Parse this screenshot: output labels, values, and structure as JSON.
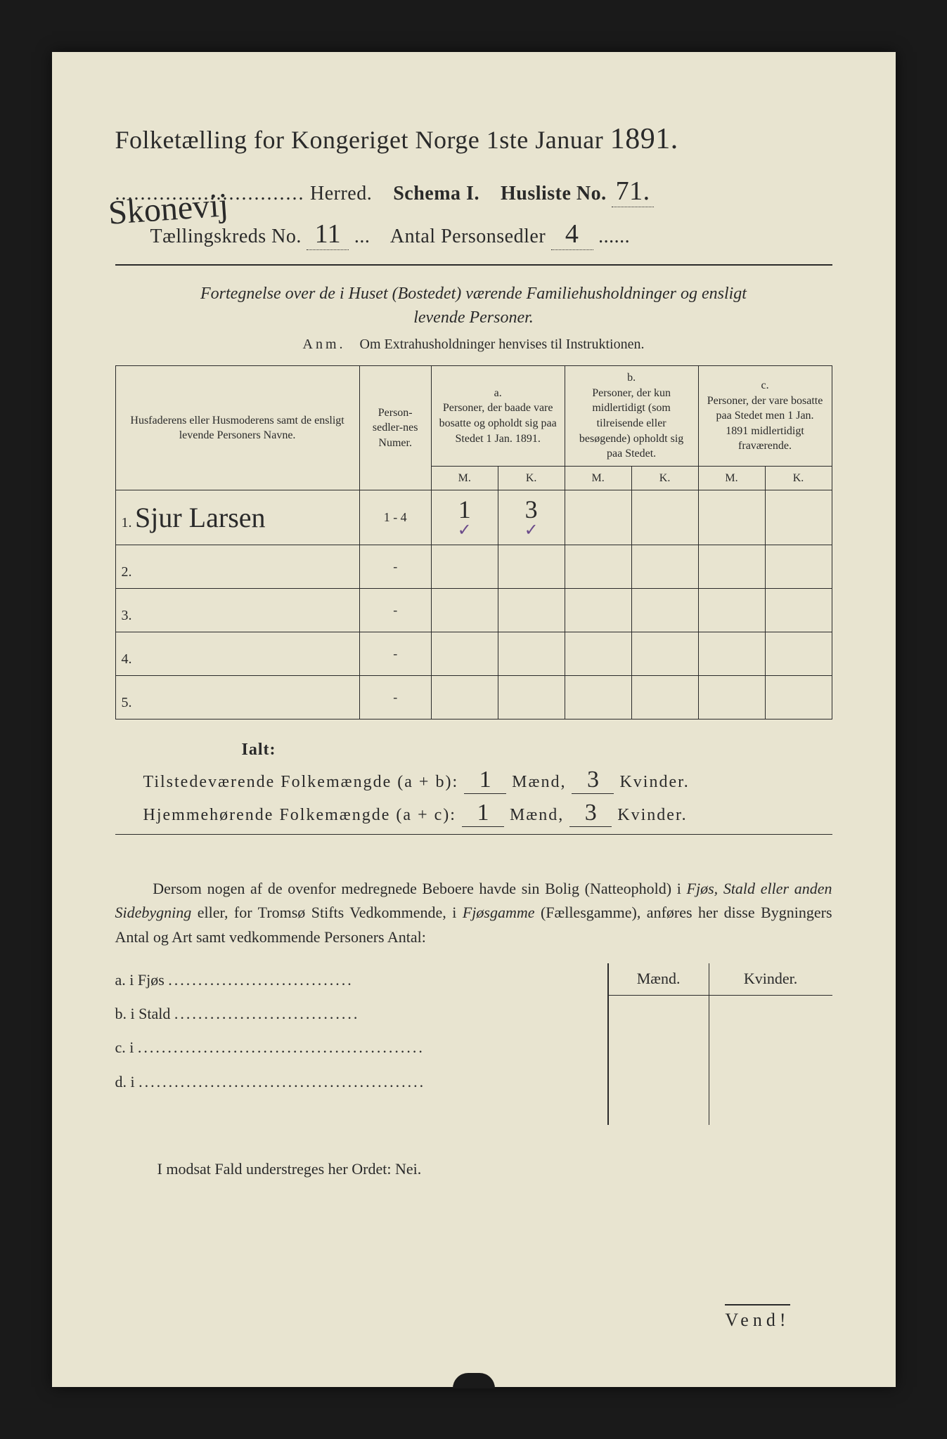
{
  "colors": {
    "page_bg": "#1a1a1a",
    "paper_bg": "#e8e4d0",
    "ink": "#2a2a2a",
    "checkmark": "#6a4a8a"
  },
  "header": {
    "title_prefix": "Folketælling",
    "title_mid": " for Kongeriget Norge 1ste Januar ",
    "year": "1891.",
    "herred_handwritten": "Skonevij",
    "herred_label": "Herred.",
    "schema_label": "Schema I.",
    "husliste_label": "Husliste No.",
    "husliste_no": "71.",
    "kreds_label": "Tællingskreds No.",
    "kreds_no": "11",
    "personsedler_label": "Antal Personsedler",
    "personsedler_no": "4"
  },
  "fortegnelse": {
    "line1": "Fortegnelse over de i Huset (Bostedet) værende Familiehusholdninger og ensligt",
    "line2": "levende Personer."
  },
  "anm": {
    "prefix": "Anm.",
    "text": "Om Extrahusholdninger henvises til Instruktionen."
  },
  "table": {
    "head": {
      "names": "Husfaderens eller Husmoderens samt de ensligt levende Personers Navne.",
      "numer": "Person-sedler-nes Numer.",
      "a_label": "a.",
      "a_text": "Personer, der baade vare bosatte og opholdt sig paa Stedet 1 Jan. 1891.",
      "b_label": "b.",
      "b_text": "Personer, der kun midlertidigt (som tilreisende eller besøgende) opholdt sig paa Stedet.",
      "c_label": "c.",
      "c_text": "Personer, der vare bosatte paa Stedet men 1 Jan. 1891 midlertidigt fraværende.",
      "m": "M.",
      "k": "K."
    },
    "rows": [
      {
        "n": "1.",
        "name": "Sjur Larsen",
        "numer": "1 - 4",
        "a_m": "1",
        "a_k": "3",
        "a_m_check": "✓",
        "a_k_check": "✓"
      },
      {
        "n": "2.",
        "name": "",
        "numer": "-",
        "a_m": "",
        "a_k": ""
      },
      {
        "n": "3.",
        "name": "",
        "numer": "-",
        "a_m": "",
        "a_k": ""
      },
      {
        "n": "4.",
        "name": "",
        "numer": "-",
        "a_m": "",
        "a_k": ""
      },
      {
        "n": "5.",
        "name": "",
        "numer": "-",
        "a_m": "",
        "a_k": ""
      }
    ]
  },
  "totals": {
    "ialt": "Ialt:",
    "present_label": "Tilstedeværende Folkemængde (a + b):",
    "resident_label": "Hjemmehørende Folkemængde (a + c):",
    "maend": "Mænd,",
    "kvinder": "Kvinder.",
    "present_m": "1",
    "present_k": "3",
    "resident_m": "1",
    "resident_k": "3"
  },
  "paragraph": {
    "text1": "Dersom nogen af de ovenfor medregnede Beboere havde sin Bolig (Natteophold) i ",
    "it1": "Fjøs, Stald eller anden Sidebygning",
    "text2": " eller, for Tromsø Stifts Vedkommende, i ",
    "it2": "Fjøsgamme",
    "text3": " (Fællesgamme), anføres her disse Bygningers Antal og Art samt vedkommende Personers Antal:"
  },
  "mk": {
    "maend": "Mænd.",
    "kvinder": "Kvinder.",
    "rows": [
      {
        "label": "a.  i      Fjøs",
        "dots": "..............................."
      },
      {
        "label": "b.  i      Stald",
        "dots": "..............................."
      },
      {
        "label": "c.  i",
        "dots": "................................................"
      },
      {
        "label": "d.  i",
        "dots": "................................................"
      }
    ]
  },
  "nei": "I modsat Fald understreges her Ordet: Nei.",
  "vend": "Vend!"
}
